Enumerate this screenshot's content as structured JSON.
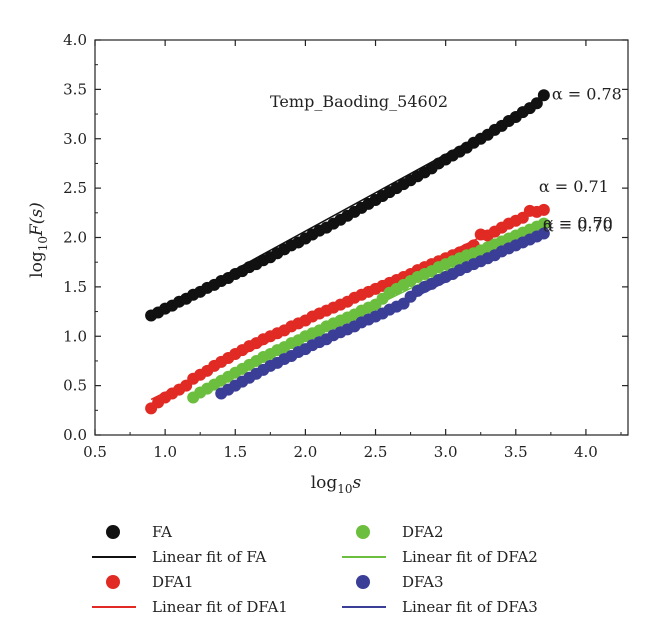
{
  "chart_data": {
    "type": "scatter",
    "title": "Temp_Baoding_54602",
    "xlabel_base": "log",
    "xlabel_sub": "10",
    "xlabel_var": "s",
    "ylabel_base": "log",
    "ylabel_sub": "10",
    "ylabel_var": "F(s)",
    "xlim": [
      0.5,
      4.3
    ],
    "ylim": [
      0.0,
      4.0
    ],
    "xticks": [
      "0.5",
      "1.0",
      "1.5",
      "2.0",
      "2.5",
      "3.0",
      "3.5",
      "4.0"
    ],
    "xtick_values": [
      0.5,
      1.0,
      1.5,
      2.0,
      2.5,
      3.0,
      3.5,
      4.0
    ],
    "yticks": [
      "0.0",
      "0.5",
      "1.0",
      "1.5",
      "2.0",
      "2.5",
      "3.0",
      "3.5",
      "4.0"
    ],
    "ytick_values": [
      0.0,
      0.5,
      1.0,
      1.5,
      2.0,
      2.5,
      3.0,
      3.5,
      4.0
    ],
    "series": [
      {
        "name": "FA",
        "fit_name": "Linear fit of FA",
        "color": "#111111",
        "fit_color": "#111111",
        "alpha_label": "α = 0.78",
        "x": [
          0.9,
          0.95,
          1.0,
          1.05,
          1.1,
          1.15,
          1.2,
          1.25,
          1.3,
          1.35,
          1.4,
          1.45,
          1.5,
          1.55,
          1.6,
          1.65,
          1.7,
          1.75,
          1.8,
          1.85,
          1.9,
          1.95,
          2.0,
          2.05,
          2.1,
          2.15,
          2.2,
          2.25,
          2.3,
          2.35,
          2.4,
          2.45,
          2.5,
          2.55,
          2.6,
          2.65,
          2.7,
          2.75,
          2.8,
          2.85,
          2.9,
          2.95,
          3.0,
          3.05,
          3.1,
          3.15,
          3.2,
          3.25,
          3.3,
          3.35,
          3.4,
          3.45,
          3.5,
          3.55,
          3.6,
          3.65,
          3.7
        ],
        "y": [
          1.21,
          1.24,
          1.28,
          1.31,
          1.35,
          1.38,
          1.42,
          1.45,
          1.49,
          1.52,
          1.56,
          1.59,
          1.63,
          1.66,
          1.7,
          1.73,
          1.77,
          1.8,
          1.84,
          1.88,
          1.92,
          1.95,
          1.99,
          2.03,
          2.07,
          2.1,
          2.14,
          2.18,
          2.22,
          2.26,
          2.3,
          2.34,
          2.38,
          2.42,
          2.46,
          2.5,
          2.54,
          2.58,
          2.62,
          2.66,
          2.7,
          2.75,
          2.79,
          2.83,
          2.87,
          2.91,
          2.96,
          3.0,
          3.04,
          3.09,
          3.13,
          3.18,
          3.22,
          3.27,
          3.31,
          3.36,
          3.44
        ],
        "fit": [
          [
            0.9,
            1.21
          ],
          [
            3.68,
            3.37
          ]
        ]
      },
      {
        "name": "DFA1",
        "fit_name": "Linear fit of DFA1",
        "color": "#e02a23",
        "fit_color": "#e02a23",
        "alpha_label": "α = 0.71",
        "x": [
          0.9,
          0.95,
          1.0,
          1.05,
          1.1,
          1.15,
          1.2,
          1.25,
          1.3,
          1.35,
          1.4,
          1.45,
          1.5,
          1.55,
          1.6,
          1.65,
          1.7,
          1.75,
          1.8,
          1.85,
          1.9,
          1.95,
          2.0,
          2.05,
          2.1,
          2.15,
          2.2,
          2.25,
          2.3,
          2.35,
          2.4,
          2.45,
          2.5,
          2.55,
          2.6,
          2.65,
          2.7,
          2.75,
          2.8,
          2.85,
          2.9,
          2.95,
          3.0,
          3.05,
          3.1,
          3.15,
          3.2,
          3.25,
          3.3,
          3.35,
          3.4,
          3.45,
          3.5,
          3.55,
          3.6,
          3.65,
          3.7
        ],
        "y": [
          0.27,
          0.33,
          0.38,
          0.42,
          0.46,
          0.5,
          0.57,
          0.61,
          0.65,
          0.7,
          0.74,
          0.78,
          0.82,
          0.86,
          0.9,
          0.93,
          0.97,
          1.0,
          1.03,
          1.06,
          1.1,
          1.13,
          1.16,
          1.2,
          1.23,
          1.26,
          1.29,
          1.32,
          1.35,
          1.39,
          1.42,
          1.45,
          1.48,
          1.51,
          1.54,
          1.57,
          1.6,
          1.63,
          1.67,
          1.7,
          1.73,
          1.76,
          1.79,
          1.82,
          1.85,
          1.88,
          1.92,
          2.03,
          2.02,
          2.06,
          2.1,
          2.14,
          2.17,
          2.2,
          2.27,
          2.26,
          2.28
        ],
        "fit": [
          [
            0.9,
            0.36
          ],
          [
            3.7,
            2.32
          ]
        ]
      },
      {
        "name": "DFA2",
        "fit_name": "Linear fit of DFA2",
        "color": "#6cbf3e",
        "fit_color": "#6cbf3e",
        "alpha_label": "α = 0.70",
        "x": [
          1.2,
          1.25,
          1.3,
          1.35,
          1.4,
          1.45,
          1.5,
          1.55,
          1.6,
          1.65,
          1.7,
          1.75,
          1.8,
          1.85,
          1.9,
          1.95,
          2.0,
          2.05,
          2.1,
          2.15,
          2.2,
          2.25,
          2.3,
          2.35,
          2.4,
          2.45,
          2.5,
          2.55,
          2.6,
          2.65,
          2.7,
          2.75,
          2.8,
          2.85,
          2.9,
          2.95,
          3.0,
          3.05,
          3.1,
          3.15,
          3.2,
          3.25,
          3.3,
          3.35,
          3.4,
          3.45,
          3.5,
          3.55,
          3.6,
          3.65,
          3.7
        ],
        "y": [
          0.38,
          0.43,
          0.47,
          0.51,
          0.55,
          0.59,
          0.63,
          0.67,
          0.71,
          0.75,
          0.79,
          0.82,
          0.86,
          0.89,
          0.93,
          0.96,
          1.0,
          1.03,
          1.06,
          1.1,
          1.13,
          1.16,
          1.19,
          1.22,
          1.26,
          1.29,
          1.32,
          1.38,
          1.44,
          1.48,
          1.52,
          1.56,
          1.6,
          1.63,
          1.66,
          1.7,
          1.73,
          1.76,
          1.79,
          1.82,
          1.84,
          1.87,
          1.9,
          1.93,
          1.96,
          1.99,
          2.02,
          2.05,
          2.08,
          2.11,
          2.14
        ],
        "fit": [
          [
            1.2,
            0.4
          ],
          [
            3.7,
            2.15
          ]
        ]
      },
      {
        "name": "DFA3",
        "fit_name": "Linear fit of DFA3",
        "color": "#3b3e96",
        "fit_color": "#3b3e96",
        "alpha_label": "α = 0.70",
        "x": [
          1.4,
          1.45,
          1.5,
          1.55,
          1.6,
          1.65,
          1.7,
          1.75,
          1.8,
          1.85,
          1.9,
          1.95,
          2.0,
          2.05,
          2.1,
          2.15,
          2.2,
          2.25,
          2.3,
          2.35,
          2.4,
          2.45,
          2.5,
          2.55,
          2.6,
          2.65,
          2.7,
          2.75,
          2.8,
          2.85,
          2.9,
          2.95,
          3.0,
          3.05,
          3.1,
          3.15,
          3.2,
          3.25,
          3.3,
          3.35,
          3.4,
          3.45,
          3.5,
          3.55,
          3.6,
          3.65,
          3.7
        ],
        "y": [
          0.42,
          0.46,
          0.5,
          0.54,
          0.58,
          0.62,
          0.66,
          0.7,
          0.73,
          0.77,
          0.8,
          0.84,
          0.87,
          0.91,
          0.94,
          0.97,
          1.01,
          1.04,
          1.07,
          1.1,
          1.14,
          1.17,
          1.2,
          1.23,
          1.27,
          1.3,
          1.33,
          1.4,
          1.46,
          1.5,
          1.53,
          1.57,
          1.6,
          1.63,
          1.67,
          1.7,
          1.73,
          1.76,
          1.79,
          1.82,
          1.86,
          1.89,
          1.92,
          1.95,
          1.98,
          2.01,
          2.04
        ],
        "fit": [
          [
            1.4,
            0.43
          ],
          [
            3.7,
            2.04
          ]
        ]
      }
    ],
    "legend_placement": "bottom"
  }
}
